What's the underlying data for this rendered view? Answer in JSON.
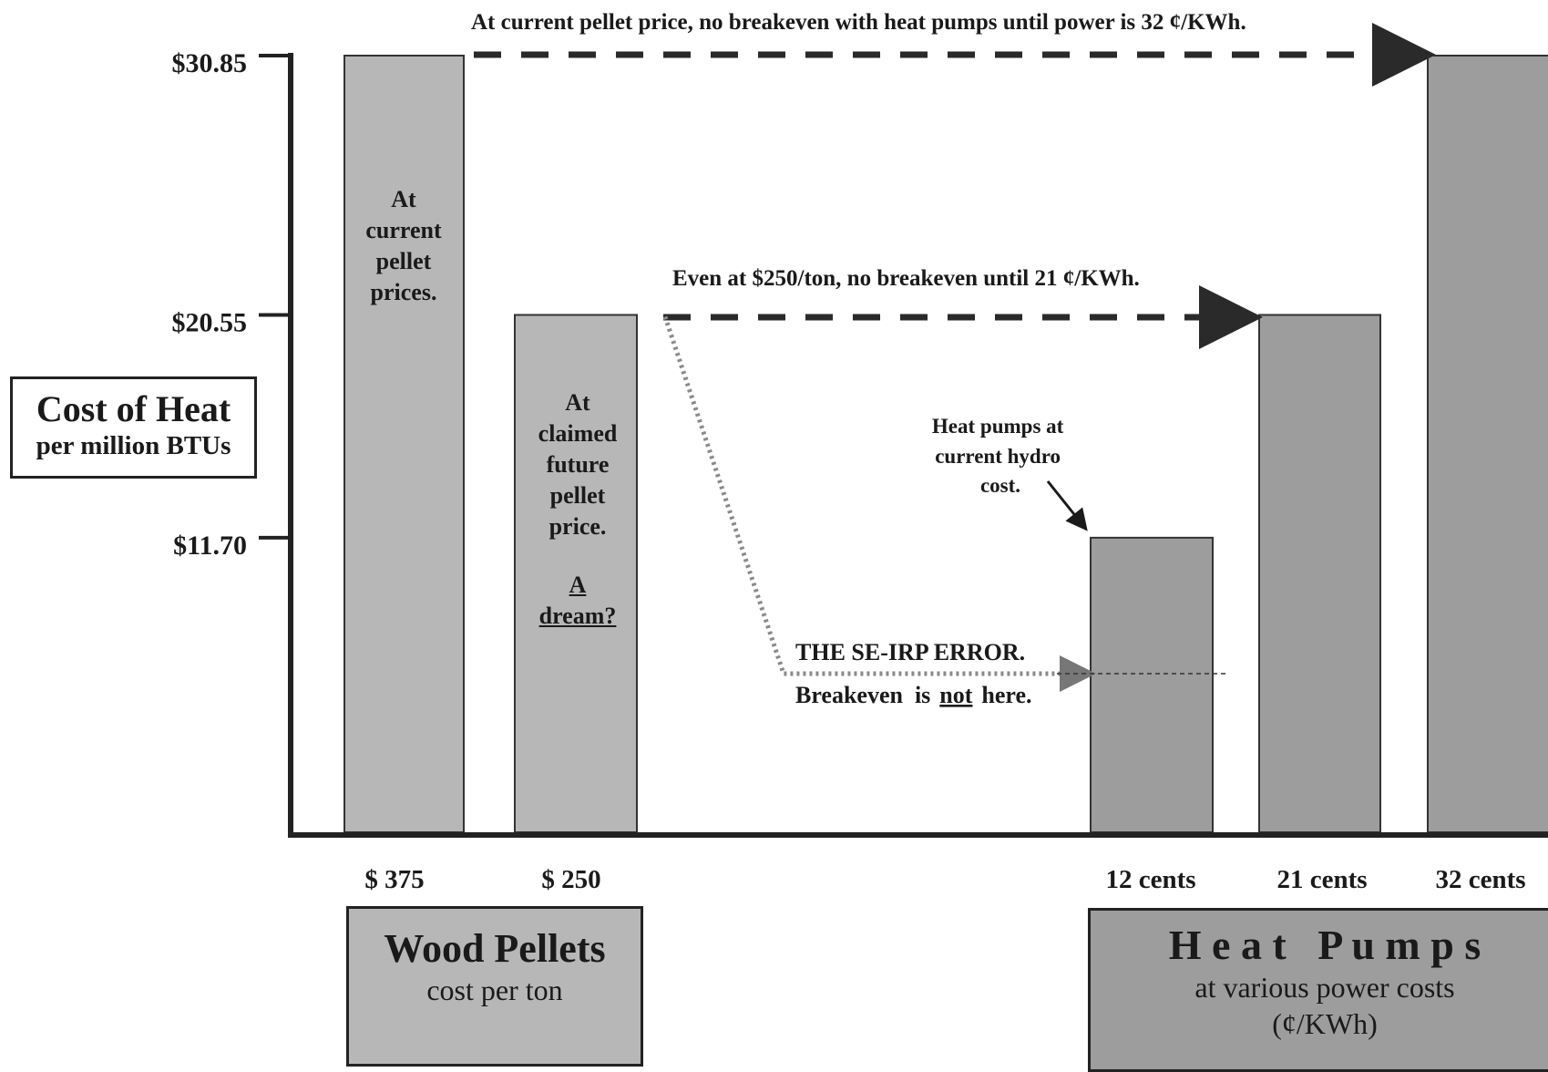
{
  "chart_data": {
    "type": "bar",
    "categories": [
      "$ 375",
      "$ 250",
      "12 cents",
      "21 cents",
      "32 cents"
    ],
    "values": [
      30.85,
      20.55,
      11.7,
      20.55,
      30.85
    ],
    "ylim": [
      0,
      30.85
    ],
    "yticks": [
      "$30.85",
      "$20.55",
      "$11.70"
    ],
    "ytick_values": [
      30.85,
      20.55,
      11.7
    ],
    "ylabel": "Cost of Heat",
    "ylabel_sub": "per million BTUs",
    "grid": false,
    "groups": [
      {
        "title": "Wood Pellets",
        "subtitle": "cost per ton",
        "color": "#b7b7b7"
      },
      {
        "title": "H e a t   P u m p s",
        "subtitle": "at various power costs",
        "subtitle2": "(¢/KWh)",
        "color": "#9d9d9d"
      }
    ],
    "annotations": {
      "top": "At current pellet price, no breakeven with heat pumps until power is 32 ¢/KWh.",
      "middle": "Even at $250/ton, no breakeven until 21 ¢/KWh.",
      "hydro": [
        "Heat pumps at",
        "current hydro",
        "cost."
      ],
      "error_title": "THE SE-IRP ERROR.",
      "error_line": [
        "Breakeven  is",
        "not",
        "here."
      ],
      "error_value": 6.3,
      "bar1": [
        "At",
        "current",
        "pellet",
        "prices."
      ],
      "bar2": [
        "At",
        "claimed",
        "future",
        "pellet",
        "price."
      ],
      "bar2_extra": [
        "A",
        "dream?"
      ]
    }
  }
}
